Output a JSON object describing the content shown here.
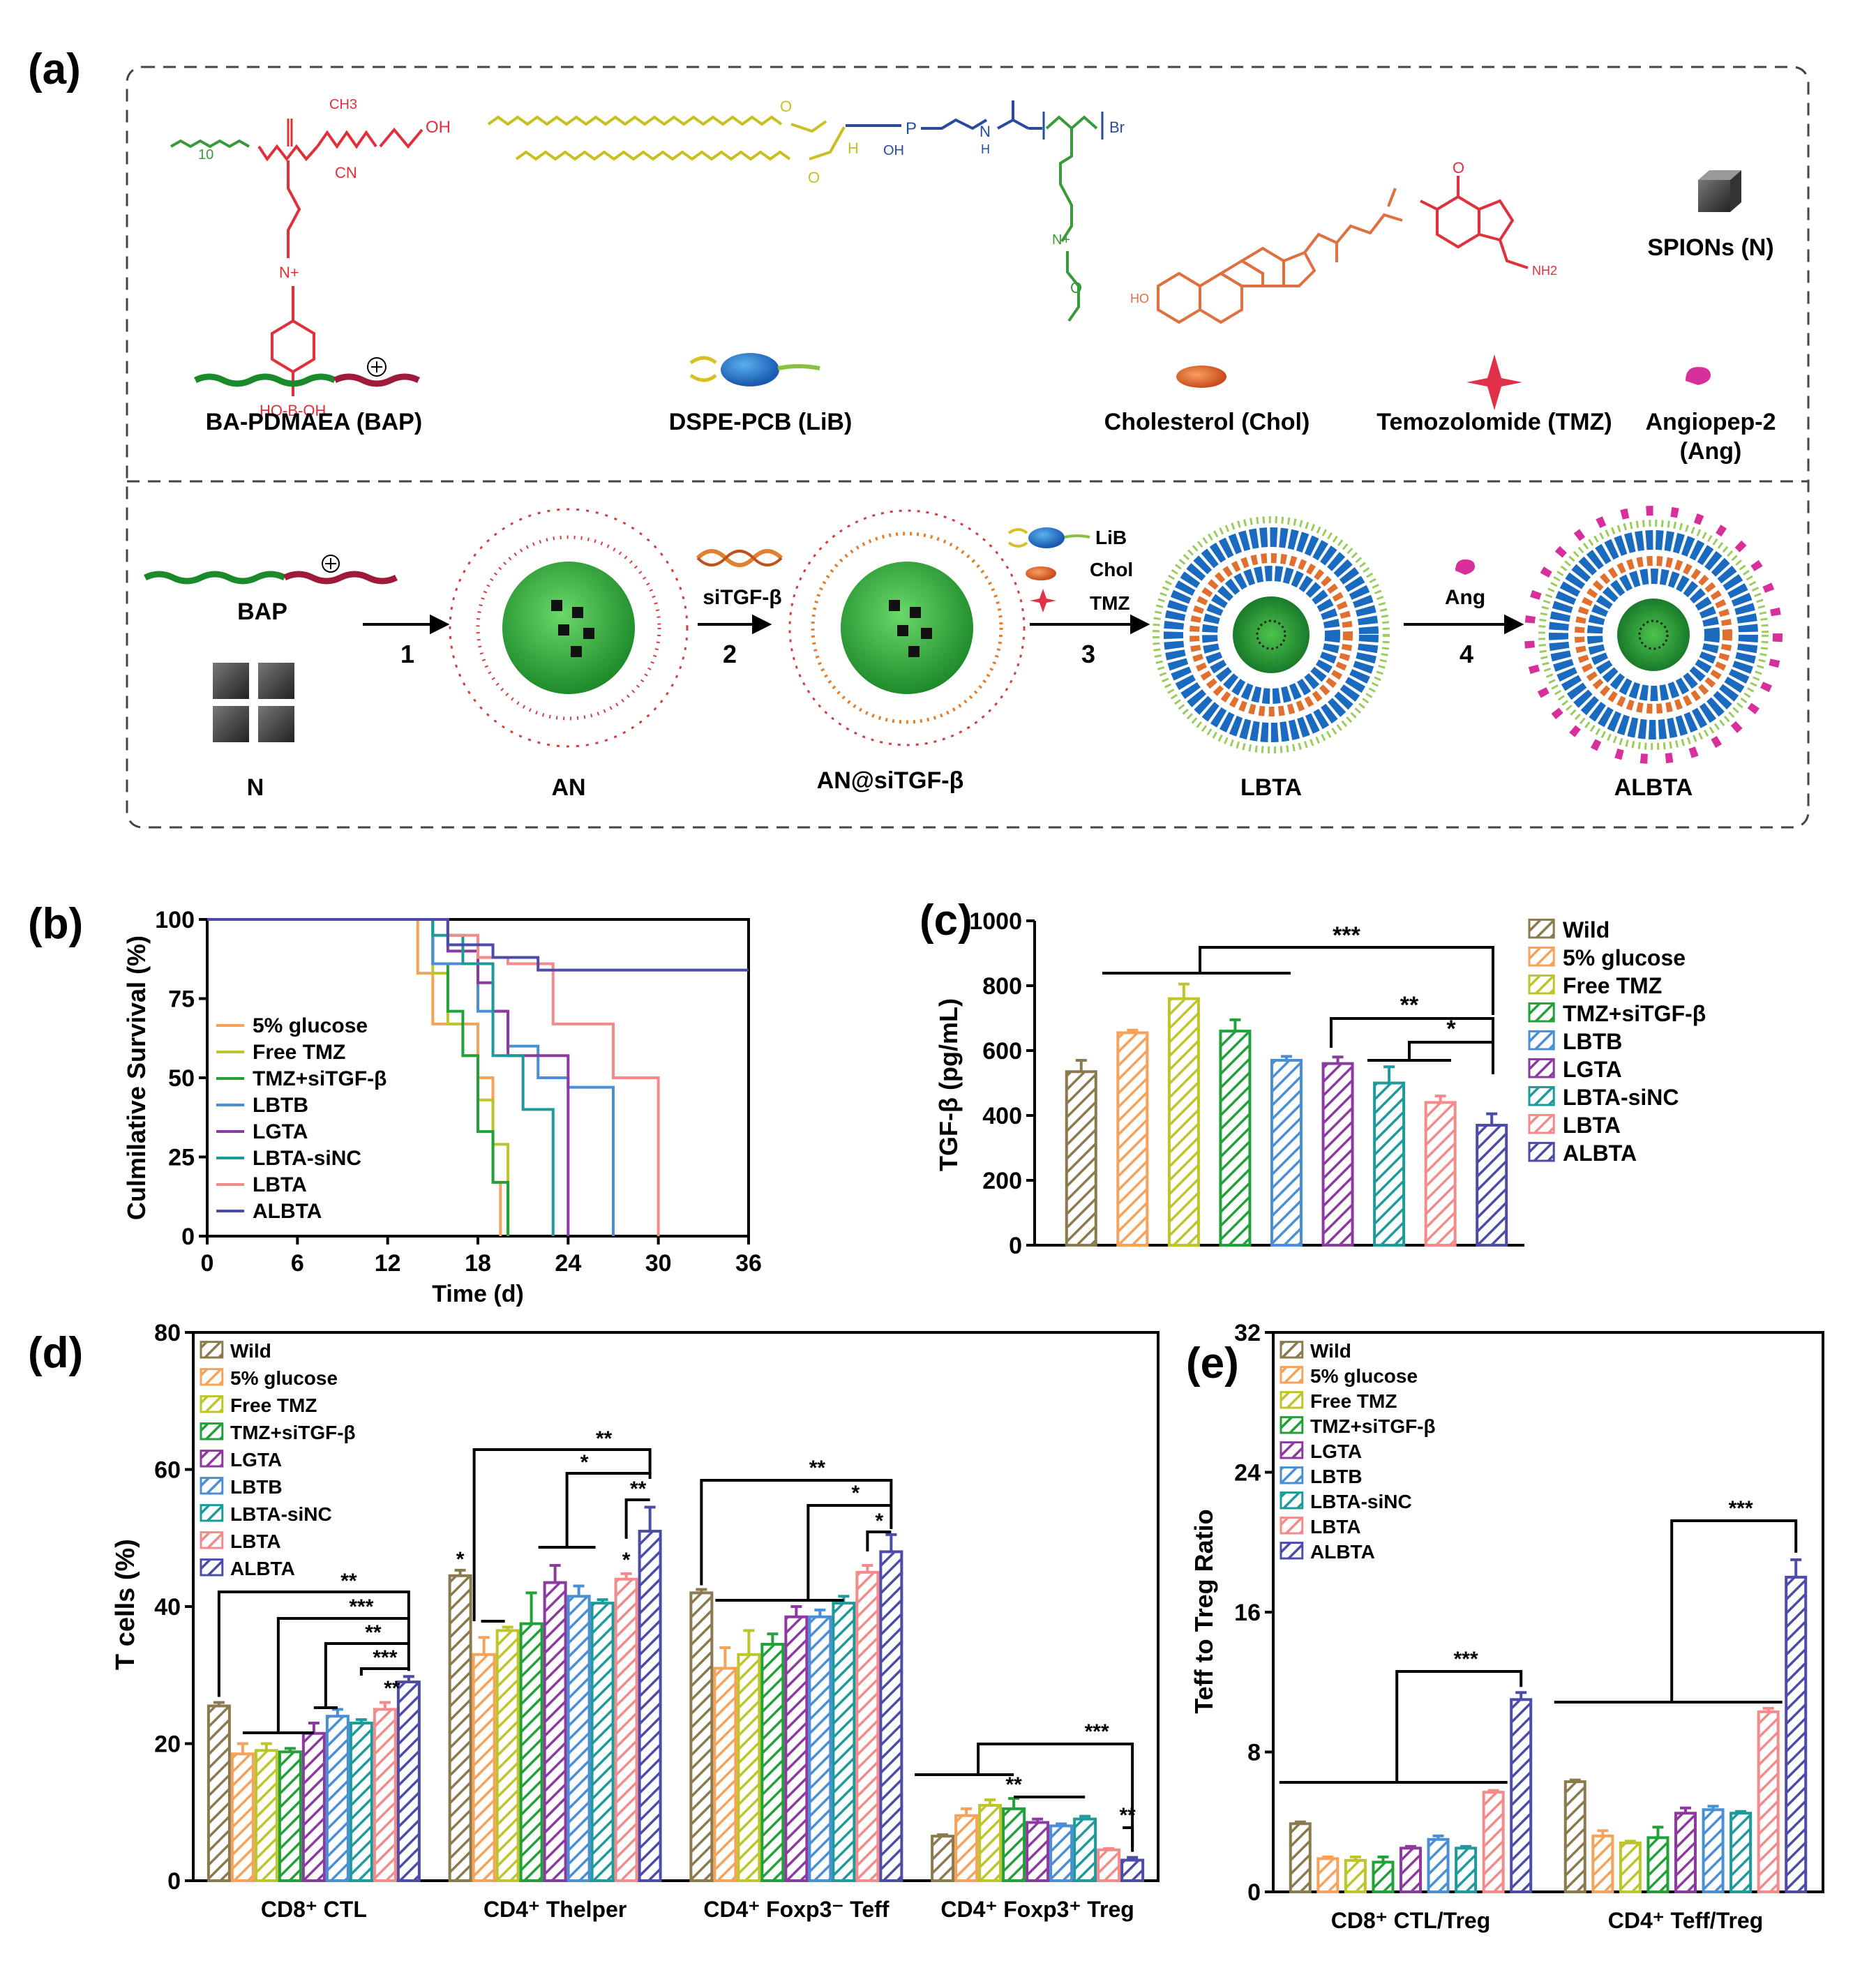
{
  "panel_labels": {
    "a": "(a)",
    "b": "(b)",
    "c": "(c)",
    "d": "(d)",
    "e": "(e)"
  },
  "schematic": {
    "components": {
      "bap": "BA-PDMAEA (BAP)",
      "lib": "DSPE-PCB (LiB)",
      "chol": "Cholesterol (Chol)",
      "tmz": "Temozolomide (TMZ)",
      "ang_line1": "Angiopep-2",
      "ang_line2": "(Ang)",
      "spions": "SPIONs (N)"
    },
    "chem_text": {
      "oh": "OH",
      "ho": "HO",
      "cn": "CN",
      "ch3": "CH3",
      "n_plus": "N+",
      "b": "B",
      "p": "P",
      "o": "O",
      "h": "H",
      "n": "N",
      "br": "Br",
      "nh2": "NH2",
      "ho_b_oh": "HO-B-OH",
      "n10": "10"
    },
    "assembly": {
      "bap": "BAP",
      "n": "N",
      "an": "AN",
      "an_sitgf": "AN@siTGF-β",
      "lbta": "LBTA",
      "albta": "ALBTA",
      "sitgf": "siTGF-β",
      "lib": "LiB",
      "chol": "Chol",
      "tmz": "TMZ",
      "ang": "Ang",
      "steps": [
        "1",
        "2",
        "3",
        "4"
      ]
    }
  },
  "colors": {
    "Wild": "#8a7a4e",
    "5% glucose": "#f7a25a",
    "Free TMZ": "#bcc52a",
    "TMZ+siTGF-β": "#22a03a",
    "LBTB": "#4a8fd6",
    "LGTA": "#8c3aa0",
    "LBTA-siNC": "#1f9a9a",
    "LBTA": "#f48a8a",
    "ALBTA": "#4c4ca8",
    "red_chem": "#e0303a",
    "green_chem": "#3a9a3a",
    "yellow_chem": "#c8c020",
    "blue_chem": "#2a4aa0",
    "orange_chol": "#e07040"
  },
  "chart_data": [
    {
      "panel": "b",
      "type": "line",
      "title": "",
      "xlabel": "Time (d)",
      "ylabel": "Culmilative Survival (%)",
      "xlim": [
        0,
        36
      ],
      "ylim": [
        0,
        100
      ],
      "xticks": [
        0,
        6,
        12,
        18,
        24,
        30,
        36
      ],
      "yticks": [
        0,
        25,
        50,
        75,
        100
      ],
      "series": [
        {
          "name": "5% glucose",
          "color_key": "5% glucose",
          "x": [
            0,
            14,
            15,
            18,
            19,
            19.5
          ],
          "y": [
            100,
            83,
            67,
            50,
            17,
            0
          ]
        },
        {
          "name": "Free TMZ",
          "color_key": "Free TMZ",
          "x": [
            0,
            15,
            16,
            17,
            18,
            19,
            20
          ],
          "y": [
            100,
            83,
            67,
            57,
            43,
            29,
            0
          ]
        },
        {
          "name": "TMZ+siTGF-β",
          "color_key": "TMZ+siTGF-β",
          "x": [
            0,
            15,
            16,
            17,
            18,
            19,
            20
          ],
          "y": [
            100,
            86,
            71,
            57,
            33,
            17,
            0
          ]
        },
        {
          "name": "LBTB",
          "color_key": "LBTB",
          "x": [
            0,
            15,
            18,
            20,
            22,
            24,
            27
          ],
          "y": [
            100,
            86,
            71,
            60,
            50,
            47,
            0
          ]
        },
        {
          "name": "LGTA",
          "color_key": "LGTA",
          "x": [
            0,
            16,
            18,
            19,
            20,
            24
          ],
          "y": [
            100,
            90,
            80,
            71,
            57,
            0
          ]
        },
        {
          "name": "LBTA-siNC",
          "color_key": "LBTA-siNC",
          "x": [
            0,
            15,
            17,
            19,
            21,
            23
          ],
          "y": [
            100,
            95,
            86,
            57,
            40,
            0
          ]
        },
        {
          "name": "LBTA",
          "color_key": "LBTA",
          "x": [
            0,
            16,
            18,
            20,
            23,
            27,
            30
          ],
          "y": [
            100,
            95,
            88,
            86,
            67,
            50,
            0
          ]
        },
        {
          "name": "ALBTA",
          "color_key": "ALBTA",
          "x": [
            0,
            16,
            19,
            22,
            36
          ],
          "y": [
            100,
            92,
            88,
            84,
            84
          ]
        }
      ]
    },
    {
      "panel": "c",
      "type": "bar",
      "title": "",
      "xlabel": "",
      "ylabel": "TGF-β (pg/mL)",
      "ylim": [
        0,
        1000
      ],
      "yticks": [
        0,
        200,
        400,
        600,
        800,
        1000
      ],
      "categories": [
        "Wild",
        "5% glucose",
        "Free TMZ",
        "TMZ+siTGF-β",
        "LBTB",
        "LGTA",
        "LBTA-siNC",
        "LBTA",
        "ALBTA"
      ],
      "values": [
        535,
        655,
        760,
        660,
        570,
        560,
        500,
        440,
        370
      ],
      "errors": [
        35,
        8,
        45,
        35,
        12,
        20,
        50,
        20,
        35
      ],
      "significance": [
        "***",
        "**",
        "*"
      ]
    },
    {
      "panel": "d",
      "type": "bar",
      "title": "",
      "xlabel": "",
      "ylabel": "T cells (%)",
      "ylim": [
        0,
        80
      ],
      "yticks": [
        0,
        20,
        40,
        60,
        80
      ],
      "categories": [
        "CD8⁺ CTL",
        "CD4⁺ Thelper",
        "CD4⁺ Foxp3⁻ Teff",
        "CD4⁺ Foxp3⁺ Treg"
      ],
      "series": [
        {
          "name": "Wild",
          "values": [
            25.5,
            44.5,
            42,
            6.5
          ],
          "errors": [
            0.5,
            0.8,
            0.5,
            0.2
          ]
        },
        {
          "name": "5% glucose",
          "values": [
            18.5,
            33,
            31,
            9.5
          ],
          "errors": [
            1.5,
            2.5,
            3,
            1
          ]
        },
        {
          "name": "Free TMZ",
          "values": [
            19,
            36.5,
            33,
            11
          ],
          "errors": [
            1,
            0.5,
            3.5,
            0.8
          ]
        },
        {
          "name": "TMZ+siTGF-β",
          "values": [
            18.8,
            37.5,
            34.5,
            10.5
          ],
          "errors": [
            0.5,
            4.5,
            1.5,
            1.5
          ]
        },
        {
          "name": "LGTA",
          "values": [
            21.5,
            43.5,
            38.5,
            8.5
          ],
          "errors": [
            1.5,
            2.5,
            1.5,
            0.5
          ]
        },
        {
          "name": "LBTB",
          "values": [
            24,
            41.5,
            38.5,
            8
          ],
          "errors": [
            1,
            1.5,
            1,
            0.3
          ]
        },
        {
          "name": "LBTA-siNC",
          "values": [
            23,
            40.5,
            40.5,
            9
          ],
          "errors": [
            0.5,
            0.5,
            1,
            0.4
          ]
        },
        {
          "name": "LBTA",
          "values": [
            25,
            44,
            45,
            4.5
          ],
          "errors": [
            1,
            0.8,
            1,
            0.2
          ]
        },
        {
          "name": "ALBTA",
          "values": [
            29,
            51,
            48,
            3
          ],
          "errors": [
            0.8,
            3.5,
            2.5,
            0.4
          ]
        }
      ],
      "legend": [
        "Wild",
        "5% glucose",
        "Free TMZ",
        "TMZ+siTGF-β",
        "LGTA",
        "LBTB",
        "LBTA-siNC",
        "LBTA",
        "ALBTA"
      ],
      "significance": [
        "*",
        "**",
        "***",
        "**",
        "***",
        "**",
        "*",
        "**",
        "*",
        "**",
        "*",
        "**",
        "*",
        "*",
        "***",
        "**",
        "**"
      ]
    },
    {
      "panel": "e",
      "type": "bar",
      "title": "",
      "xlabel": "",
      "ylabel": "Teff to Treg Ratio",
      "ylim": [
        0,
        32
      ],
      "yticks": [
        0,
        8,
        16,
        24,
        32
      ],
      "categories": [
        "CD8⁺ CTL/Treg",
        "CD4⁺ Teff/Treg"
      ],
      "series": [
        {
          "name": "Wild",
          "values": [
            3.9,
            6.3
          ],
          "errors": [
            0.1,
            0.1
          ]
        },
        {
          "name": "5% glucose",
          "values": [
            1.9,
            3.2
          ],
          "errors": [
            0.1,
            0.3
          ]
        },
        {
          "name": "Free TMZ",
          "values": [
            1.8,
            2.8
          ],
          "errors": [
            0.2,
            0.1
          ]
        },
        {
          "name": "TMZ+siTGF-β",
          "values": [
            1.7,
            3.1
          ],
          "errors": [
            0.3,
            0.6
          ]
        },
        {
          "name": "LGTA",
          "values": [
            2.5,
            4.5
          ],
          "errors": [
            0.1,
            0.3
          ]
        },
        {
          "name": "LBTB",
          "values": [
            3.0,
            4.7
          ],
          "errors": [
            0.2,
            0.2
          ]
        },
        {
          "name": "LBTA-siNC",
          "values": [
            2.5,
            4.5
          ],
          "errors": [
            0.1,
            0.1
          ]
        },
        {
          "name": "LBTA",
          "values": [
            5.7,
            10.3
          ],
          "errors": [
            0.1,
            0.2
          ]
        },
        {
          "name": "ALBTA",
          "values": [
            11.0,
            18.0
          ],
          "errors": [
            0.4,
            1.0
          ]
        }
      ],
      "legend": [
        "Wild",
        "5% glucose",
        "Free TMZ",
        "TMZ+siTGF-β",
        "LGTA",
        "LBTB",
        "LBTA-siNC",
        "LBTA",
        "ALBTA"
      ],
      "significance": [
        "***",
        "***"
      ]
    }
  ]
}
